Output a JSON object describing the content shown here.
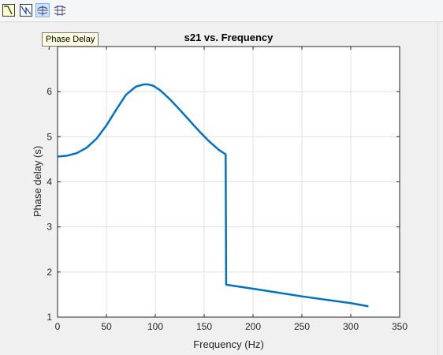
{
  "toolbar": {
    "buttons": [
      {
        "icon": "magnitude-response-icon",
        "active": false
      },
      {
        "icon": "phase-response-icon",
        "active": false
      },
      {
        "icon": "group-delay-icon",
        "active": true
      },
      {
        "icon": "phase-delay-icon",
        "active": false
      }
    ]
  },
  "tooltip": {
    "text": "Phase Delay"
  },
  "chart_data": {
    "type": "line",
    "title": "s21 vs. Frequency",
    "xlabel": "Frequency (Hz)",
    "ylabel": "Phase delay (s)",
    "xlim": [
      0,
      350
    ],
    "ylim": [
      1,
      7
    ],
    "xticks": [
      0,
      50,
      100,
      150,
      200,
      250,
      300,
      350
    ],
    "yticks": [
      1,
      2,
      3,
      4,
      5,
      6,
      7
    ],
    "grid": true,
    "line_color": "#0072bd",
    "series": [
      {
        "x": [
          0,
          10,
          20,
          30,
          40,
          50,
          60,
          70,
          80,
          88,
          93,
          98,
          105,
          115,
          125,
          135,
          145,
          155,
          165,
          172,
          172.5,
          200,
          250,
          300,
          318
        ],
        "y": [
          4.56,
          4.58,
          4.64,
          4.76,
          4.96,
          5.25,
          5.6,
          5.93,
          6.11,
          6.16,
          6.16,
          6.13,
          6.03,
          5.83,
          5.6,
          5.36,
          5.12,
          4.9,
          4.71,
          4.61,
          1.72,
          1.63,
          1.46,
          1.31,
          1.24
        ]
      }
    ]
  }
}
